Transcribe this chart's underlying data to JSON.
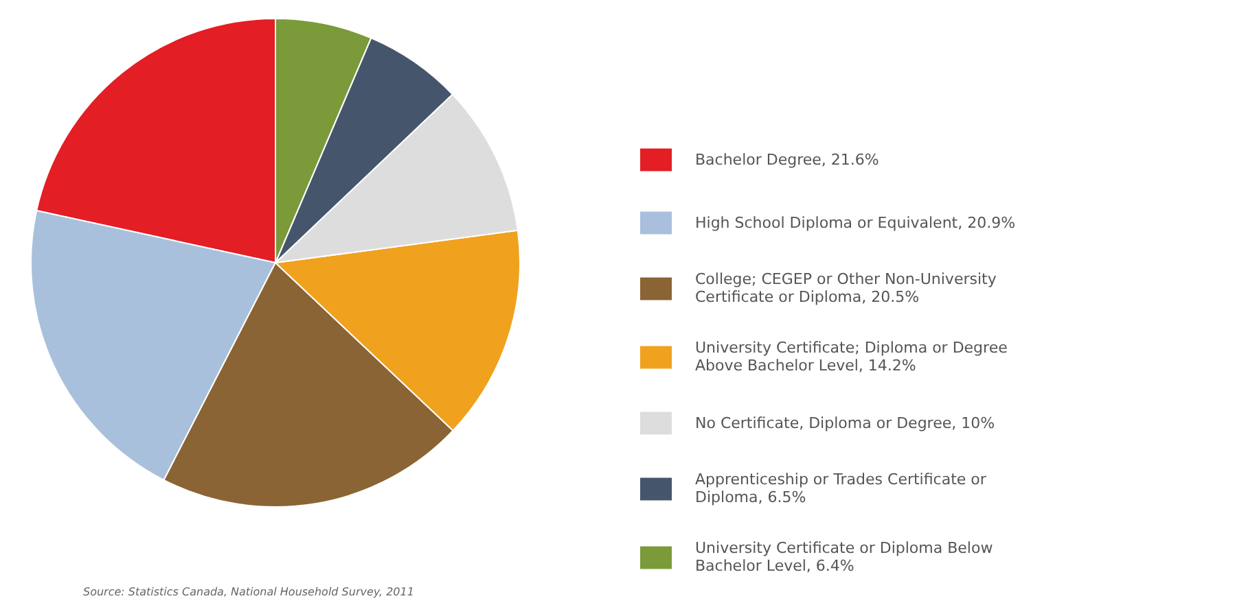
{
  "chart_data": {
    "type": "pie",
    "categories": [
      "Bachelor Degree",
      "High School Diploma or Equivalent",
      "College; CEGEP or Other Non-University Certificate or Diploma",
      "University Certificate; Diploma or Degree Above Bachelor Level",
      "No Certificate, Diploma or Degree",
      "Apprenticeship or Trades Certificate or Diploma",
      "University Certificate or Diploma Below Bachelor Level"
    ],
    "values": [
      21.6,
      20.9,
      20.5,
      14.2,
      10,
      6.5,
      6.4
    ],
    "value_labels": [
      "21.6%",
      "20.9%",
      "20.5%",
      "14.2%",
      "10%",
      "6.5%",
      "6.4%"
    ],
    "colors": [
      "#e31e24",
      "#a9c0dc",
      "#8a6434",
      "#f0a11e",
      "#dddddd",
      "#45566c",
      "#7b9a3a"
    ],
    "legend": "right",
    "annotations": [
      "Source: Statistics Canada, National Household Survey, 2011"
    ]
  }
}
